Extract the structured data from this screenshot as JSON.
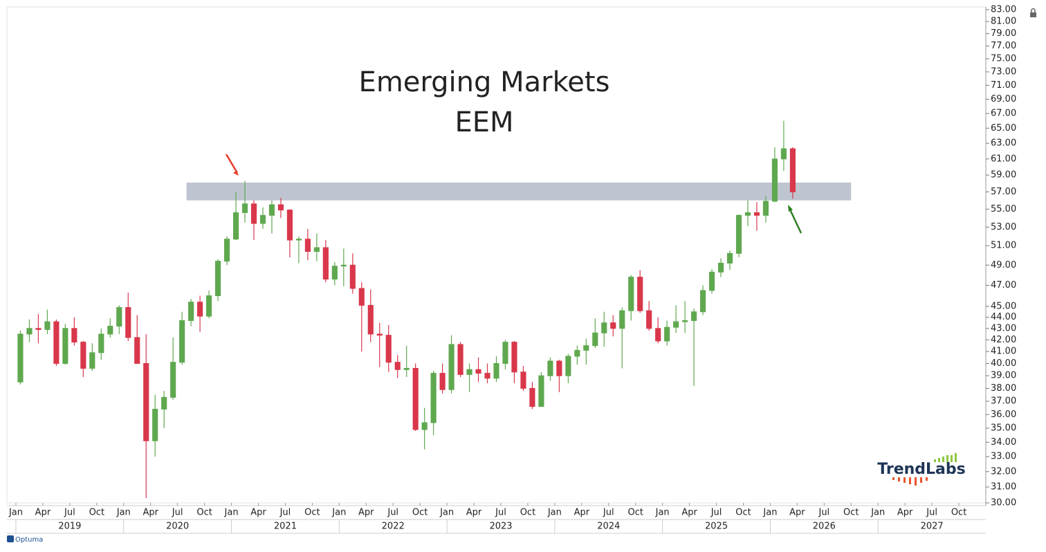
{
  "chart_data": {
    "type": "candlestick",
    "title": "Emerging Markets",
    "subtitle": "EEM",
    "log_scale": true,
    "up_color": "#5fa84f",
    "down_color": "#d9374b",
    "band": {
      "from": 56,
      "to": 58.1,
      "x": [
        "2020-08",
        "2026-10"
      ],
      "color": "#b7becb"
    },
    "xlim": [
      "2018-12",
      "2028-01"
    ],
    "ylim": [
      30,
      83
    ],
    "x": [
      "2019-01",
      "2019-02",
      "2019-03",
      "2019-04",
      "2019-05",
      "2019-06",
      "2019-07",
      "2019-08",
      "2019-09",
      "2019-10",
      "2019-11",
      "2019-12",
      "2020-01",
      "2020-02",
      "2020-03",
      "2020-04",
      "2020-05",
      "2020-06",
      "2020-07",
      "2020-08",
      "2020-09",
      "2020-10",
      "2020-11",
      "2020-12",
      "2021-01",
      "2021-02",
      "2021-03",
      "2021-04",
      "2021-05",
      "2021-06",
      "2021-07",
      "2021-08",
      "2021-09",
      "2021-10",
      "2021-11",
      "2021-12",
      "2022-01",
      "2022-02",
      "2022-03",
      "2022-04",
      "2022-05",
      "2022-06",
      "2022-07",
      "2022-08",
      "2022-09",
      "2022-10",
      "2022-11",
      "2022-12",
      "2023-01",
      "2023-02",
      "2023-03",
      "2023-04",
      "2023-05",
      "2023-06",
      "2023-07",
      "2023-08",
      "2023-09",
      "2023-10",
      "2023-11",
      "2023-12",
      "2024-01",
      "2024-02",
      "2024-03",
      "2024-04",
      "2024-05",
      "2024-06",
      "2024-07",
      "2024-08",
      "2024-09",
      "2024-10",
      "2024-11",
      "2024-12",
      "2025-01",
      "2025-02",
      "2025-03",
      "2025-04",
      "2025-05",
      "2025-06",
      "2025-07",
      "2025-08",
      "2025-09",
      "2025-10",
      "2025-11",
      "2025-12",
      "2026-01",
      "2026-02",
      "2026-03"
    ],
    "open": [
      38.5,
      42.5,
      43.0,
      42.9,
      43.6,
      40.0,
      43.0,
      41.8,
      39.6,
      40.9,
      42.5,
      43.2,
      44.9,
      42.2,
      40.0,
      34.1,
      36.4,
      37.3,
      40.1,
      43.7,
      45.4,
      44.1,
      46.0,
      49.4,
      51.7,
      54.6,
      55.6,
      53.4,
      54.3,
      55.5,
      54.9,
      51.6,
      51.7,
      50.4,
      50.8,
      47.6,
      48.9,
      49.0,
      46.7,
      45.1,
      42.5,
      42.4,
      40.1,
      39.5,
      39.6,
      34.9,
      35.4,
      39.2,
      37.9,
      41.6,
      39.1,
      39.5,
      39.2,
      38.8,
      40.0,
      41.8,
      39.3,
      38.0,
      36.6,
      39.0,
      40.2,
      39.0,
      40.6,
      41.1,
      41.5,
      42.6,
      43.5,
      43.0,
      44.6,
      47.8,
      44.6,
      43.0,
      41.9,
      43.1,
      43.6,
      43.7,
      44.5,
      46.5,
      48.3,
      49.2,
      50.2,
      54.3,
      54.6,
      54.3,
      55.9,
      61.0,
      62.3
    ],
    "high": [
      42.8,
      43.8,
      44.3,
      44.7,
      43.8,
      43.4,
      44.0,
      41.9,
      41.7,
      43.0,
      43.9,
      45.1,
      46.3,
      44.2,
      42.5,
      37.5,
      37.8,
      42.2,
      44.5,
      45.7,
      46.0,
      46.5,
      49.6,
      52.0,
      57.0,
      58.3,
      56.0,
      55.2,
      56.0,
      56.3,
      55.0,
      52.0,
      52.8,
      52.3,
      51.6,
      49.3,
      50.7,
      50.2,
      47.3,
      46.6,
      43.5,
      43.3,
      40.7,
      41.5,
      40.0,
      36.5,
      39.4,
      40.0,
      42.4,
      41.8,
      40.0,
      40.5,
      40.0,
      40.6,
      42.0,
      41.9,
      39.8,
      38.5,
      39.3,
      40.5,
      40.3,
      40.8,
      41.5,
      42.1,
      43.9,
      44.5,
      44.2,
      44.9,
      48.0,
      48.5,
      45.5,
      44.0,
      43.7,
      45.1,
      45.5,
      44.8,
      47.0,
      48.6,
      49.7,
      50.5,
      54.4,
      56.0,
      55.8,
      56.5,
      62.5,
      66.0,
      62.5
    ],
    "low": [
      38.3,
      41.8,
      41.7,
      42.5,
      39.8,
      39.9,
      41.5,
      38.9,
      39.4,
      40.3,
      42.2,
      42.5,
      41.9,
      40.0,
      30.3,
      33.0,
      35.0,
      37.1,
      39.9,
      43.2,
      42.7,
      43.9,
      45.5,
      49.0,
      51.6,
      53.5,
      51.6,
      52.8,
      52.3,
      54.0,
      49.8,
      49.2,
      49.5,
      49.4,
      47.3,
      47.0,
      46.9,
      46.2,
      41.0,
      41.8,
      39.7,
      39.3,
      38.8,
      38.9,
      34.8,
      33.5,
      34.5,
      37.6,
      37.6,
      38.9,
      37.7,
      38.5,
      38.4,
      38.5,
      39.5,
      38.4,
      37.8,
      36.4,
      36.6,
      38.6,
      37.7,
      38.4,
      39.9,
      39.9,
      41.3,
      41.4,
      42.3,
      39.6,
      43.7,
      44.4,
      42.8,
      41.7,
      41.5,
      42.6,
      42.6,
      38.2,
      44.2,
      46.2,
      47.8,
      48.5,
      49.8,
      53.1,
      52.6,
      53.5,
      55.8,
      59.5,
      56.2
    ],
    "close": [
      42.5,
      43.0,
      42.9,
      43.6,
      40.0,
      43.0,
      41.8,
      39.6,
      40.9,
      42.5,
      43.2,
      44.9,
      42.2,
      40.0,
      34.1,
      36.4,
      37.3,
      40.1,
      43.7,
      45.4,
      44.1,
      46.0,
      49.4,
      51.7,
      54.6,
      55.6,
      53.4,
      54.3,
      55.5,
      54.9,
      51.6,
      51.7,
      50.4,
      50.8,
      47.6,
      48.9,
      49.0,
      46.7,
      45.1,
      42.5,
      42.4,
      40.1,
      39.5,
      39.6,
      34.9,
      35.4,
      39.2,
      37.9,
      41.6,
      39.1,
      39.5,
      39.2,
      38.8,
      40.0,
      41.8,
      39.3,
      38.0,
      36.6,
      39.0,
      40.2,
      39.0,
      40.6,
      41.1,
      41.5,
      42.6,
      43.5,
      43.0,
      44.6,
      47.8,
      44.6,
      43.0,
      41.9,
      43.1,
      43.6,
      43.7,
      44.5,
      46.5,
      48.3,
      49.2,
      50.2,
      54.3,
      54.6,
      54.3,
      55.9,
      61.0,
      62.3,
      57.0
    ],
    "yticks": [
      {
        "value": 30,
        "label": "30.00"
      },
      {
        "value": 31,
        "label": "31.00"
      },
      {
        "value": 32,
        "label": "32.00"
      },
      {
        "value": 33,
        "label": "33.00"
      },
      {
        "value": 34,
        "label": "34.00"
      },
      {
        "value": 35,
        "label": "35.00"
      },
      {
        "value": 36,
        "label": "36.00"
      },
      {
        "value": 37,
        "label": "37.00"
      },
      {
        "value": 38,
        "label": "38.00"
      },
      {
        "value": 39,
        "label": "39.00"
      },
      {
        "value": 40,
        "label": "40.00"
      },
      {
        "value": 41,
        "label": "41.00"
      },
      {
        "value": 42,
        "label": "42.00"
      },
      {
        "value": 43,
        "label": "43.00"
      },
      {
        "value": 44,
        "label": "44.00"
      },
      {
        "value": 45,
        "label": "45.00"
      },
      {
        "value": 47,
        "label": "47.00"
      },
      {
        "value": 49,
        "label": "49.00"
      },
      {
        "value": 51,
        "label": "51.00"
      },
      {
        "value": 53,
        "label": "53.00"
      },
      {
        "value": 55,
        "label": "55.00"
      },
      {
        "value": 57,
        "label": "57.00"
      },
      {
        "value": 59,
        "label": "59.00"
      },
      {
        "value": 61,
        "label": "61.00"
      },
      {
        "value": 63,
        "label": "63.00"
      },
      {
        "value": 65,
        "label": "65.00"
      },
      {
        "value": 67,
        "label": "67.00"
      },
      {
        "value": 69,
        "label": "69.00"
      },
      {
        "value": 71,
        "label": "71.00"
      },
      {
        "value": 73,
        "label": "73.00"
      },
      {
        "value": 75,
        "label": "75.00"
      },
      {
        "value": 77,
        "label": "77.00"
      },
      {
        "value": 79,
        "label": "79.00"
      },
      {
        "value": 81,
        "label": "81.00"
      },
      {
        "value": 83,
        "label": "83.00"
      }
    ],
    "xticks": [
      {
        "value": "2019-01",
        "label": "Jan"
      },
      {
        "value": "2019-04",
        "label": "Apr"
      },
      {
        "value": "2019-07",
        "label": "Jul"
      },
      {
        "value": "2019-10",
        "label": "Oct"
      },
      {
        "value": "2020-01",
        "label": "Jan"
      },
      {
        "value": "2020-04",
        "label": "Apr"
      },
      {
        "value": "2020-07",
        "label": "Jul"
      },
      {
        "value": "2020-10",
        "label": "Oct"
      },
      {
        "value": "2021-01",
        "label": "Jan"
      },
      {
        "value": "2021-04",
        "label": "Apr"
      },
      {
        "value": "2021-07",
        "label": "Jul"
      },
      {
        "value": "2021-10",
        "label": "Oct"
      },
      {
        "value": "2022-01",
        "label": "Jan"
      },
      {
        "value": "2022-04",
        "label": "Apr"
      },
      {
        "value": "2022-07",
        "label": "Jul"
      },
      {
        "value": "2022-10",
        "label": "Oct"
      },
      {
        "value": "2023-01",
        "label": "Jan"
      },
      {
        "value": "2023-04",
        "label": "Apr"
      },
      {
        "value": "2023-07",
        "label": "Jul"
      },
      {
        "value": "2023-10",
        "label": "Oct"
      },
      {
        "value": "2024-01",
        "label": "Jan"
      },
      {
        "value": "2024-04",
        "label": "Apr"
      },
      {
        "value": "2024-07",
        "label": "Jul"
      },
      {
        "value": "2024-10",
        "label": "Oct"
      },
      {
        "value": "2025-01",
        "label": "Jan"
      },
      {
        "value": "2025-04",
        "label": "Apr"
      },
      {
        "value": "2025-07",
        "label": "Jul"
      },
      {
        "value": "2025-10",
        "label": "Oct"
      },
      {
        "value": "2026-01",
        "label": "Jan"
      },
      {
        "value": "2026-04",
        "label": "Apr"
      },
      {
        "value": "2026-07",
        "label": "Jul"
      },
      {
        "value": "2026-10",
        "label": "Oct"
      },
      {
        "value": "2027-01",
        "label": "Jan"
      },
      {
        "value": "2027-04",
        "label": "Apr"
      },
      {
        "value": "2027-07",
        "label": "Jul"
      },
      {
        "value": "2027-10",
        "label": "Oct"
      }
    ],
    "year_labels": [
      "2019",
      "2020",
      "2021",
      "2022",
      "2023",
      "2024",
      "2025",
      "2026",
      "2027"
    ],
    "logo": "TrendLabs",
    "footer": "Optuma"
  }
}
